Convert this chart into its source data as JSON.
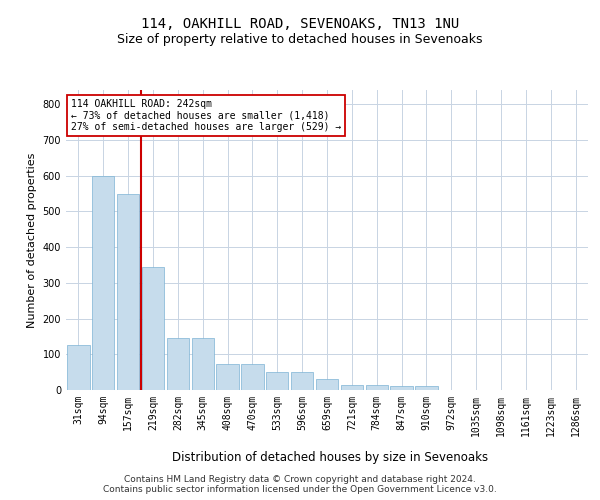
{
  "title": "114, OAKHILL ROAD, SEVENOAKS, TN13 1NU",
  "subtitle": "Size of property relative to detached houses in Sevenoaks",
  "xlabel": "Distribution of detached houses by size in Sevenoaks",
  "ylabel": "Number of detached properties",
  "categories": [
    "31sqm",
    "94sqm",
    "157sqm",
    "219sqm",
    "282sqm",
    "345sqm",
    "408sqm",
    "470sqm",
    "533sqm",
    "596sqm",
    "659sqm",
    "721sqm",
    "784sqm",
    "847sqm",
    "910sqm",
    "972sqm",
    "1035sqm",
    "1098sqm",
    "1161sqm",
    "1223sqm",
    "1286sqm"
  ],
  "values": [
    125,
    600,
    550,
    345,
    145,
    145,
    72,
    72,
    50,
    50,
    32,
    14,
    14,
    10,
    10,
    0,
    0,
    0,
    0,
    0,
    0
  ],
  "bar_color": "#c6dcec",
  "bar_edge_color": "#7db3d4",
  "vline_color": "#cc0000",
  "vline_x_index": 3,
  "annotation_text": "114 OAKHILL ROAD: 242sqm\n← 73% of detached houses are smaller (1,418)\n27% of semi-detached houses are larger (529) →",
  "annotation_box_color": "#ffffff",
  "annotation_box_edge": "#cc0000",
  "ylim": [
    0,
    840
  ],
  "yticks": [
    0,
    100,
    200,
    300,
    400,
    500,
    600,
    700,
    800
  ],
  "background_color": "#ffffff",
  "grid_color": "#c8d4e3",
  "footer": "Contains HM Land Registry data © Crown copyright and database right 2024.\nContains public sector information licensed under the Open Government Licence v3.0.",
  "title_fontsize": 10,
  "subtitle_fontsize": 9,
  "xlabel_fontsize": 8.5,
  "ylabel_fontsize": 8,
  "tick_fontsize": 7,
  "footer_fontsize": 6.5
}
